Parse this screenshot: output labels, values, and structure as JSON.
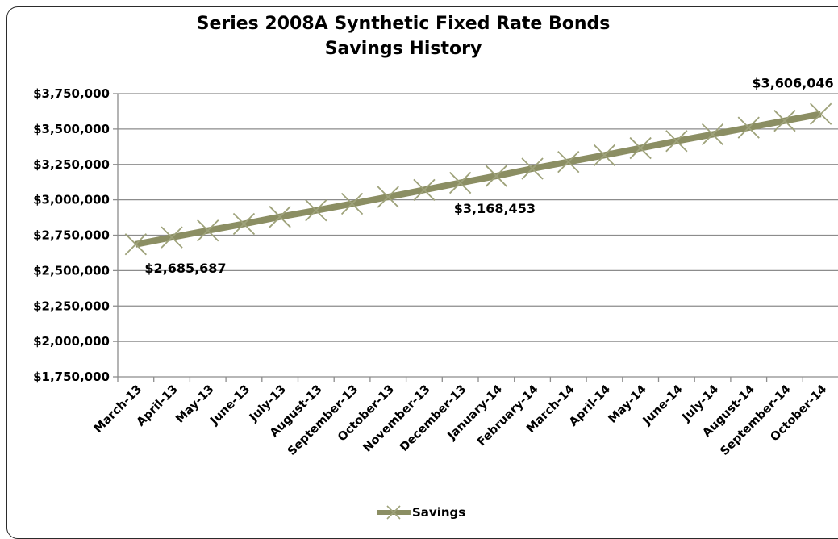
{
  "colors": {
    "series": "#8b8e63",
    "marker": "#9ea27a",
    "grid": "#8c8c8c",
    "axis": "#8c8c8c",
    "frame": "#2b2b2b"
  },
  "chart_data": {
    "type": "line",
    "title": "Series 2008A Synthetic Fixed Rate Bonds",
    "subtitle": "Savings History",
    "xlabel": "",
    "ylabel": "",
    "categories": [
      "March-13",
      "April-13",
      "May-13",
      "June-13",
      "July-13",
      "August-13",
      "September-13",
      "October-13",
      "November-13",
      "December-13",
      "January-14",
      "February-14",
      "March-14",
      "April-14",
      "May-14",
      "June-14",
      "July-14",
      "August-14",
      "September-14",
      "October-14"
    ],
    "series": [
      {
        "name": "Savings",
        "values": [
          2685687,
          2735000,
          2783000,
          2830000,
          2880000,
          2925000,
          2972000,
          3020000,
          3070000,
          3120000,
          3168453,
          3220000,
          3268000,
          3315000,
          3365000,
          3415000,
          3462000,
          3510000,
          3558000,
          3606046
        ]
      }
    ],
    "ylim": [
      1750000,
      3750000
    ],
    "ytick_labels": [
      "$3,750,000",
      "$3,500,000",
      "$3,250,000",
      "$3,000,000",
      "$2,750,000",
      "$2,500,000",
      "$2,250,000",
      "$2,000,000",
      "$1,750,000"
    ],
    "ytick_values": [
      3750000,
      3500000,
      3250000,
      3000000,
      2750000,
      2500000,
      2250000,
      2000000,
      1750000
    ],
    "grid": true,
    "legend_position": "bottom",
    "marker": "x",
    "data_labels": [
      {
        "index": 0,
        "text": "$2,685,687"
      },
      {
        "index": 10,
        "text": "$3,168,453"
      },
      {
        "index": 19,
        "text": "$3,606,046"
      }
    ]
  }
}
